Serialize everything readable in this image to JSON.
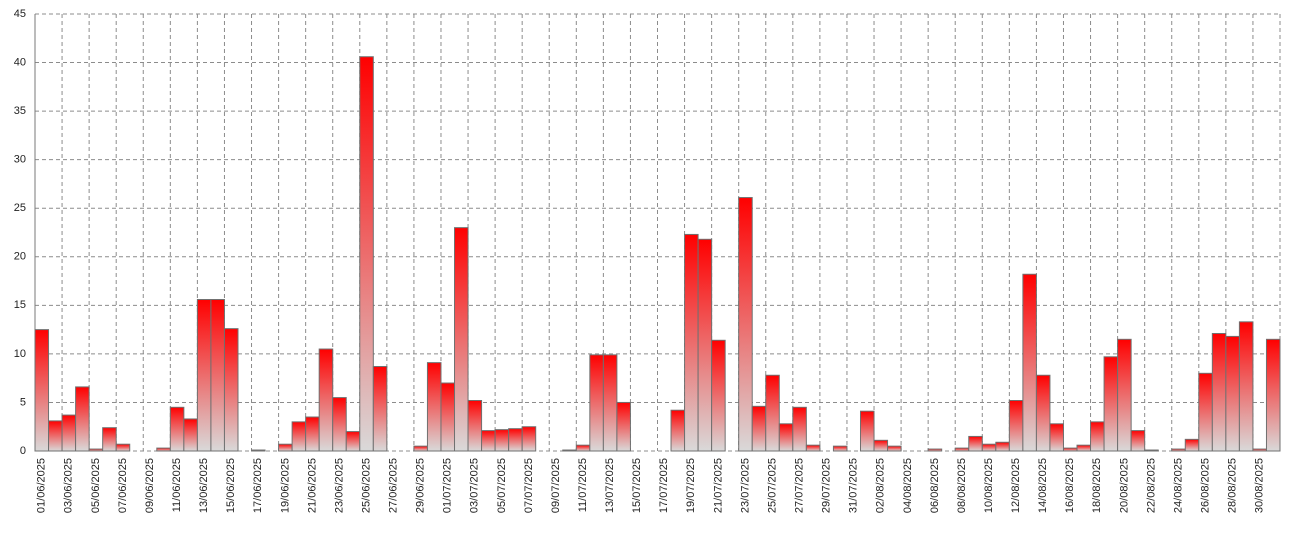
{
  "chart_data": {
    "type": "bar",
    "categories": [
      "01/06/2025",
      null,
      "03/06/2025",
      null,
      "05/06/2025",
      null,
      "07/06/2025",
      null,
      "09/06/2025",
      null,
      "11/06/2025",
      null,
      "13/06/2025",
      null,
      "15/06/2025",
      null,
      "17/06/2025",
      null,
      "19/06/2025",
      null,
      "21/06/2025",
      null,
      "23/06/2025",
      null,
      "25/06/2025",
      null,
      "27/06/2025",
      null,
      "29/06/2025",
      null,
      "01/07/2025",
      null,
      "03/07/2025",
      null,
      "05/07/2025",
      null,
      "07/07/2025",
      null,
      "09/07/2025",
      null,
      "11/07/2025",
      null,
      "13/07/2025",
      null,
      "15/07/2025",
      null,
      "17/07/2025",
      null,
      "19/07/2025",
      null,
      "21/07/2025",
      null,
      "23/07/2025",
      null,
      "25/07/2025",
      null,
      "27/07/2025",
      null,
      "29/07/2025",
      null,
      "31/07/2025",
      null,
      "02/08/2025",
      null,
      "04/08/2025",
      null,
      "06/08/2025",
      null,
      "08/08/2025",
      null,
      "10/08/2025",
      null,
      "12/08/2025",
      null,
      "14/08/2025",
      null,
      "16/08/2025",
      null,
      "18/08/2025",
      null,
      "20/08/2025",
      null,
      "22/08/2025",
      null,
      "24/08/2025",
      null,
      "26/08/2025",
      null,
      "28/08/2025",
      null,
      "30/08/2025",
      null
    ],
    "values": [
      12.5,
      3.1,
      3.7,
      6.6,
      0.2,
      2.4,
      0.7,
      0,
      0,
      0.3,
      4.5,
      3.3,
      15.6,
      15.6,
      12.6,
      0,
      0.1,
      0,
      0.7,
      3.0,
      3.5,
      10.5,
      5.5,
      2.0,
      40.6,
      8.7,
      0,
      0,
      0.5,
      9.1,
      7.0,
      23.0,
      5.2,
      2.1,
      2.2,
      2.3,
      2.5,
      0,
      0,
      0.1,
      0.6,
      9.9,
      9.9,
      5.0,
      0,
      0,
      0,
      4.2,
      22.3,
      21.8,
      11.4,
      0,
      26.1,
      4.6,
      7.8,
      2.8,
      4.5,
      0.6,
      0,
      0.5,
      0,
      4.1,
      1.1,
      0.5,
      0,
      0,
      0.2,
      0,
      0.3,
      1.5,
      0.7,
      0.9,
      5.2,
      18.2,
      7.8,
      2.8,
      0.3,
      0.6,
      3.0,
      9.7,
      11.5,
      2.1,
      0.1,
      0,
      0.2,
      1.2,
      8.0,
      12.1,
      11.8,
      13.3,
      0.2,
      11.5
    ],
    "color": "#ff0000",
    "gradient_end": "#d9d9d9",
    "ylim": [
      0,
      45
    ],
    "yticks": [
      0,
      5,
      10,
      15,
      20,
      25,
      30,
      35,
      40,
      45
    ],
    "grid": true
  }
}
